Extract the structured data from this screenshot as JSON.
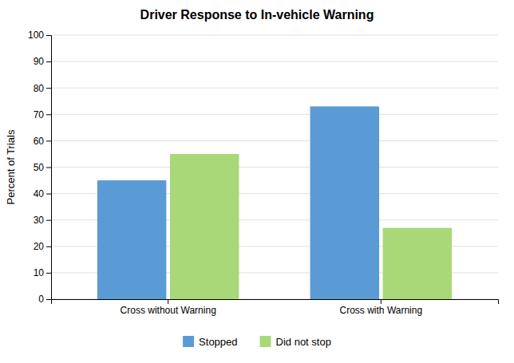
{
  "chart_data": {
    "type": "bar",
    "title": "Driver Response to In-vehicle Warning",
    "categories": [
      "Cross without Warning",
      "Cross with Warning"
    ],
    "series": [
      {
        "name": "Stopped",
        "color": "#5B9BD5",
        "values": [
          45,
          73
        ]
      },
      {
        "name": "Did not stop",
        "color": "#a8d878",
        "values": [
          55,
          27
        ]
      }
    ],
    "ylabel": "Percent of Trials",
    "ylim": [
      0,
      100
    ],
    "yticks": [
      0,
      10,
      20,
      30,
      40,
      50,
      60,
      70,
      80,
      90,
      100
    ],
    "grid": true,
    "legend": "bottom"
  }
}
